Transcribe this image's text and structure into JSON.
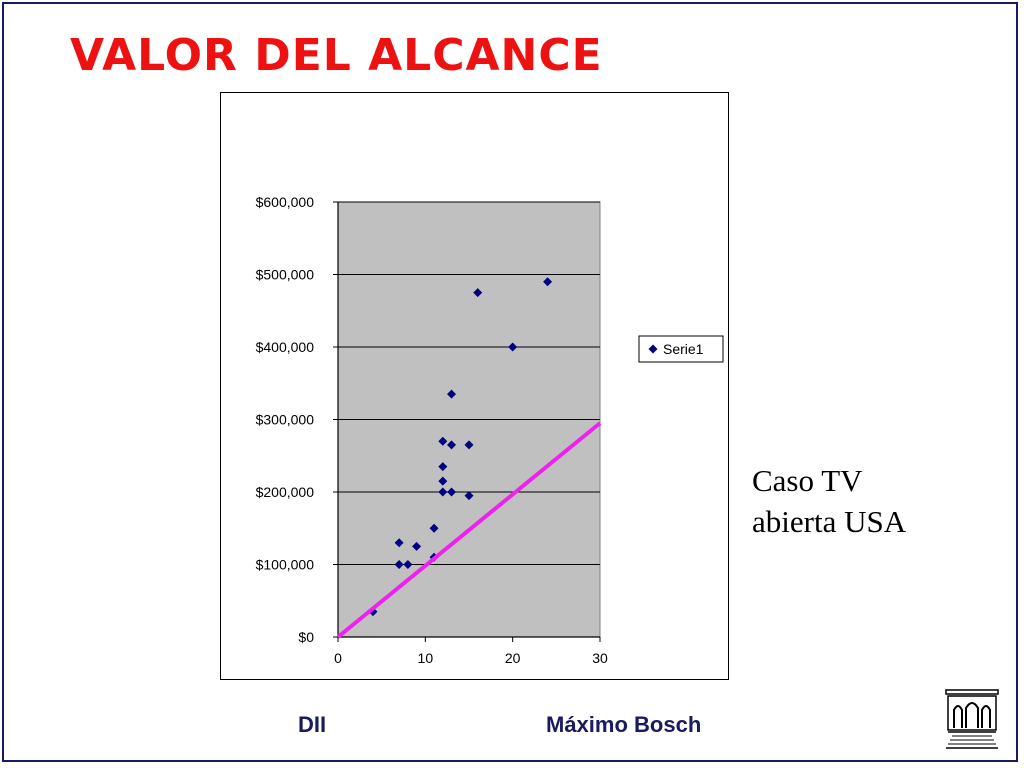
{
  "slide": {
    "title": "VALOR DEL ALCANCE",
    "caption_line1": "Caso TV",
    "caption_line2": "abierta USA",
    "footer_left": "DII",
    "footer_right": "Máximo Bosch",
    "logo_icon": "building-icon"
  },
  "chart_data": {
    "type": "scatter",
    "xlim": [
      0,
      30
    ],
    "ylim": [
      0,
      600000
    ],
    "x_ticks": [
      0,
      10,
      20,
      30
    ],
    "y_ticks": [
      0,
      100000,
      200000,
      300000,
      400000,
      500000,
      600000
    ],
    "x_tick_labels": [
      "0",
      "10",
      "20",
      "30"
    ],
    "y_tick_labels": [
      "$0",
      "$100,000",
      "$200,000",
      "$300,000",
      "$400,000",
      "$500,000",
      "$600,000"
    ],
    "grid": "horizontal",
    "plot_background": "#c0c0c0",
    "legend_placement": "right",
    "series": [
      {
        "name": "Serie1",
        "color": "#000080",
        "marker": "diamond",
        "points": [
          [
            4,
            35000
          ],
          [
            7,
            100000
          ],
          [
            7,
            130000
          ],
          [
            8,
            100000
          ],
          [
            9,
            125000
          ],
          [
            11,
            110000
          ],
          [
            11,
            150000
          ],
          [
            12,
            200000
          ],
          [
            12,
            215000
          ],
          [
            12,
            235000
          ],
          [
            12,
            270000
          ],
          [
            13,
            200000
          ],
          [
            13,
            265000
          ],
          [
            13,
            335000
          ],
          [
            15,
            195000
          ],
          [
            15,
            265000
          ],
          [
            16,
            475000
          ],
          [
            20,
            400000
          ],
          [
            24,
            490000
          ]
        ]
      }
    ],
    "annotations": [
      {
        "type": "line",
        "color": "#ee22ee",
        "from": [
          0,
          0
        ],
        "to": [
          30,
          295000
        ]
      }
    ]
  }
}
